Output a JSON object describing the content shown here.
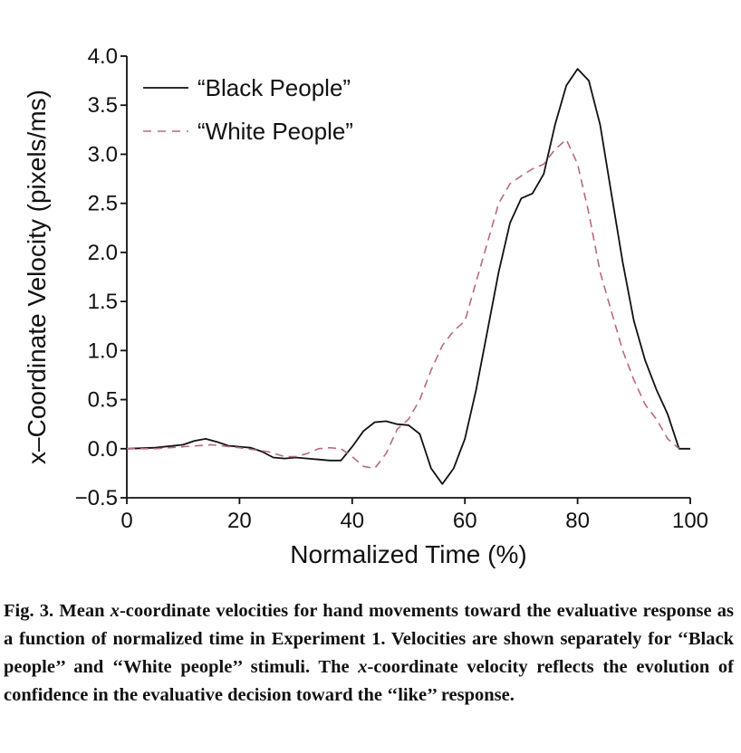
{
  "chart_data": {
    "type": "line",
    "xlabel": "Normalized Time (%)",
    "ylabel": "x–Coordinate Velocity (pixels/ms)",
    "xlim": [
      0,
      100
    ],
    "ylim": [
      -0.5,
      4.0
    ],
    "xticks": [
      "0",
      "20",
      "40",
      "60",
      "80",
      "100"
    ],
    "yticks": [
      "−0.5",
      "0.0",
      "0.5",
      "1.0",
      "1.5",
      "2.0",
      "2.5",
      "3.0",
      "3.5",
      "4.0"
    ],
    "legend_position": "top-left",
    "grid": false,
    "series": [
      {
        "name": "“Black People”",
        "style": "solid",
        "color": "#111111",
        "x": [
          0,
          5,
          10,
          12,
          14,
          16,
          18,
          20,
          22,
          24,
          26,
          28,
          30,
          32,
          34,
          36,
          38,
          40,
          42,
          44,
          46,
          48,
          50,
          52,
          54,
          56,
          58,
          60,
          62,
          64,
          66,
          68,
          70,
          72,
          74,
          76,
          78,
          80,
          82,
          84,
          86,
          88,
          90,
          92,
          94,
          96,
          98,
          100
        ],
        "y": [
          0.0,
          0.01,
          0.04,
          0.08,
          0.1,
          0.07,
          0.03,
          0.02,
          0.01,
          -0.03,
          -0.09,
          -0.1,
          -0.09,
          -0.1,
          -0.11,
          -0.12,
          -0.12,
          0.02,
          0.18,
          0.27,
          0.28,
          0.25,
          0.24,
          0.15,
          -0.2,
          -0.36,
          -0.2,
          0.1,
          0.6,
          1.2,
          1.8,
          2.3,
          2.55,
          2.6,
          2.8,
          3.3,
          3.7,
          3.87,
          3.75,
          3.3,
          2.6,
          1.9,
          1.3,
          0.9,
          0.6,
          0.35,
          0.0,
          0.0
        ]
      },
      {
        "name": "“White People”",
        "style": "dashed",
        "color": "#b76a7d",
        "x": [
          0,
          5,
          10,
          15,
          20,
          25,
          28,
          30,
          32,
          34,
          36,
          38,
          40,
          42,
          44,
          46,
          48,
          50,
          52,
          54,
          56,
          58,
          60,
          62,
          64,
          66,
          68,
          70,
          72,
          74,
          76,
          78,
          80,
          82,
          84,
          86,
          88,
          90,
          92,
          94,
          96,
          98
        ],
        "y": [
          0.0,
          0.0,
          0.02,
          0.04,
          0.01,
          -0.03,
          -0.08,
          -0.08,
          -0.05,
          0.0,
          0.01,
          0.0,
          -0.08,
          -0.18,
          -0.2,
          -0.05,
          0.2,
          0.3,
          0.5,
          0.8,
          1.05,
          1.2,
          1.3,
          1.7,
          2.1,
          2.5,
          2.7,
          2.78,
          2.85,
          2.9,
          3.05,
          3.15,
          2.9,
          2.4,
          1.8,
          1.4,
          1.0,
          0.7,
          0.45,
          0.3,
          0.1,
          0.0
        ]
      }
    ]
  },
  "caption": {
    "label": "Fig. 3.",
    "text_before_x1": " Mean ",
    "x1": "x",
    "text_after_x1": "-coordinate velocities for hand movements toward the evaluative response as a function of normalized time in Experiment 1. Velocities are shown separately for ‘‘Black people’’ and ‘‘White people’’ stimuli. The ",
    "x2": "x",
    "text_after_x2": "-coordinate velocity reflects the evolution of confidence in the evaluative decision toward the ‘‘like’’ response."
  }
}
